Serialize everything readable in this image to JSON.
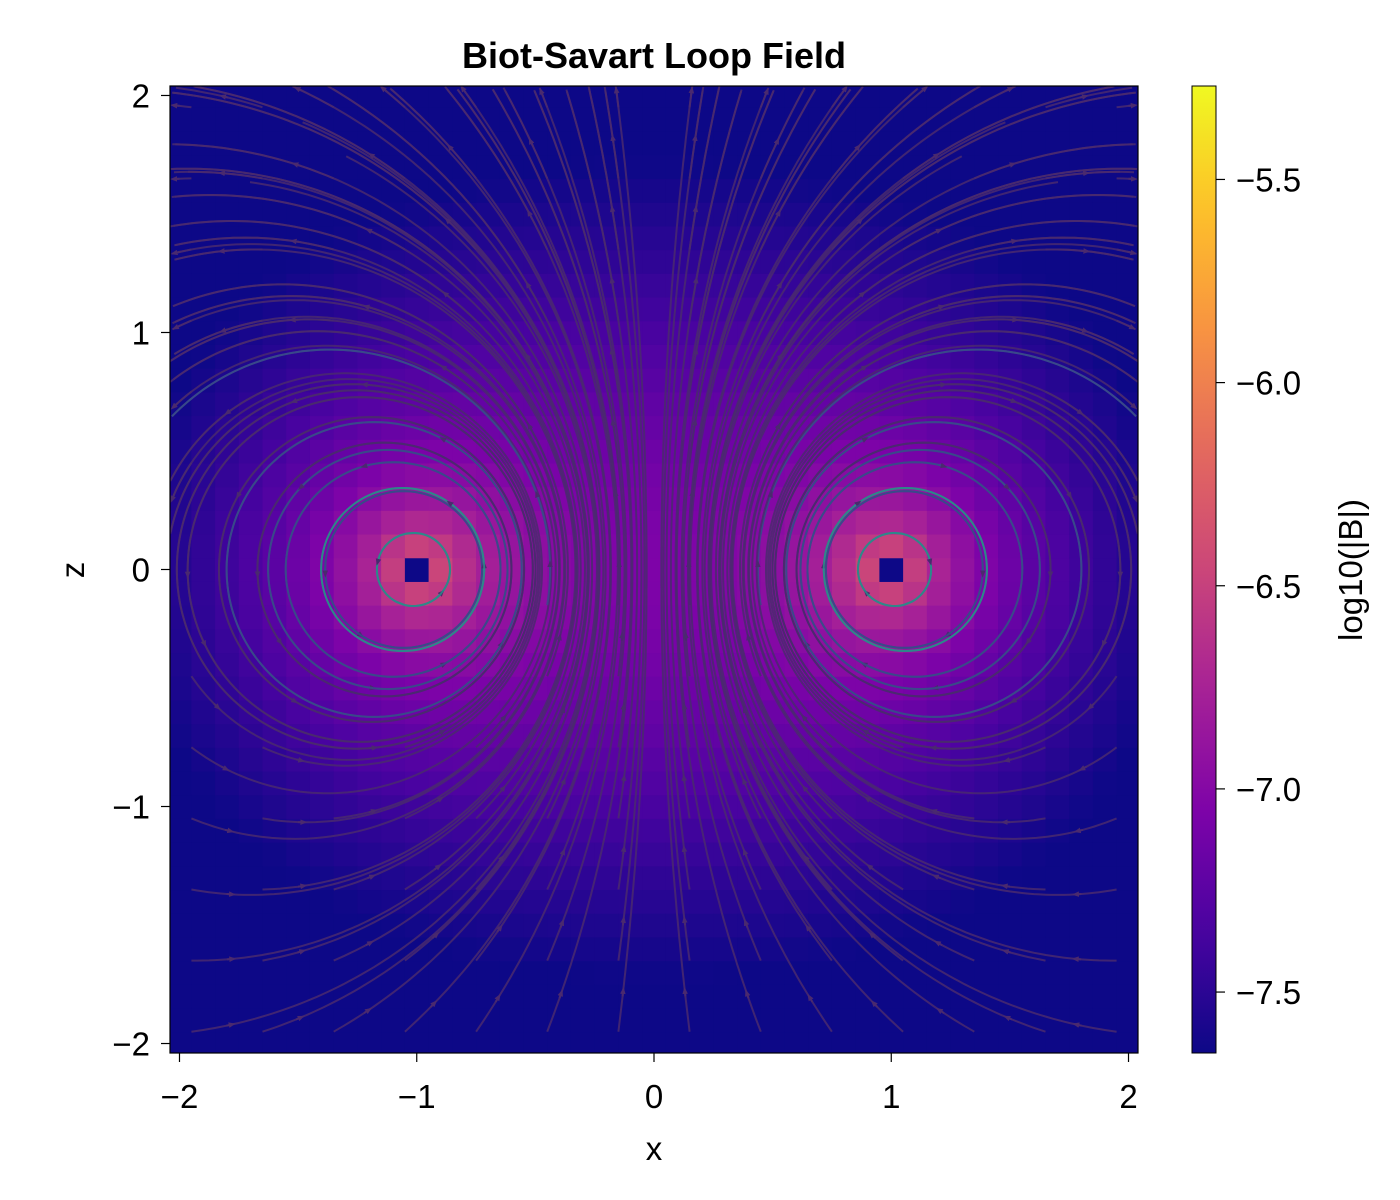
{
  "chart_data": {
    "type": "heatmap",
    "title": "Biot-Savart Loop Field",
    "xlabel": "x",
    "ylabel": "z",
    "xlim": [
      -2.04,
      2.04
    ],
    "ylim": [
      -2.04,
      2.04
    ],
    "xticks": [
      {
        "value": -2,
        "label": "−2"
      },
      {
        "value": -1,
        "label": "−1"
      },
      {
        "value": 0,
        "label": "0"
      },
      {
        "value": 1,
        "label": "1"
      },
      {
        "value": 2,
        "label": "2"
      }
    ],
    "yticks": [
      {
        "value": -2,
        "label": "−2"
      },
      {
        "value": -1,
        "label": "−1"
      },
      {
        "value": 0,
        "label": "0"
      },
      {
        "value": 1,
        "label": "1"
      },
      {
        "value": 2,
        "label": "2"
      }
    ],
    "colorbar": {
      "label": "log10(|B|)",
      "colormap": "plasma",
      "range": [
        -7.65,
        -5.27
      ],
      "ticks": [
        {
          "value": -5.5,
          "label": "−5.5"
        },
        {
          "value": -6.0,
          "label": "−6.0"
        },
        {
          "value": -6.5,
          "label": "−6.5"
        },
        {
          "value": -7.0,
          "label": "−7.0"
        },
        {
          "value": -7.5,
          "label": "−7.5"
        }
      ]
    },
    "loop": {
      "radius": 1.0,
      "wire_crossings_x": [
        -1,
        1
      ],
      "z": 0
    },
    "grid_resolution": 41,
    "streamlines": true,
    "grid": false,
    "legend": false
  }
}
